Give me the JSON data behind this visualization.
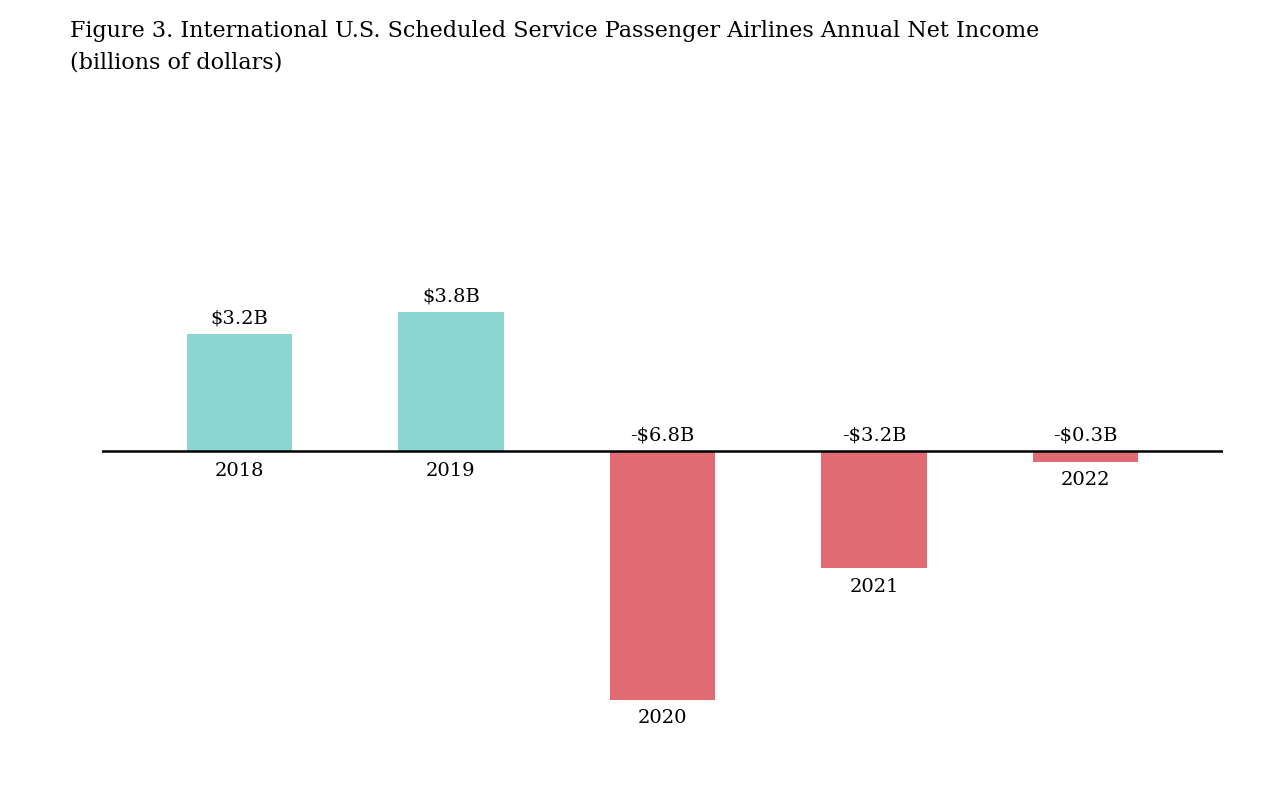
{
  "title_line1": "Figure 3. International U.S. Scheduled Service Passenger Airlines Annual Net Income",
  "title_line2": "(billions of dollars)",
  "years": [
    "2018",
    "2019",
    "2020",
    "2021",
    "2022"
  ],
  "values": [
    3.2,
    3.8,
    -6.8,
    -3.2,
    -0.3
  ],
  "labels": [
    "$3.2B",
    "$3.8B",
    "-$6.8B",
    "-$3.2B",
    "-$0.3B"
  ],
  "positive_color": "#8DD5D0",
  "negative_color": "#E06B72",
  "background_color": "#FFFFFF",
  "bar_width": 0.5,
  "ylim": [
    -8.2,
    5.2
  ],
  "title_fontsize": 16,
  "label_fontsize": 14,
  "tick_fontsize": 14
}
